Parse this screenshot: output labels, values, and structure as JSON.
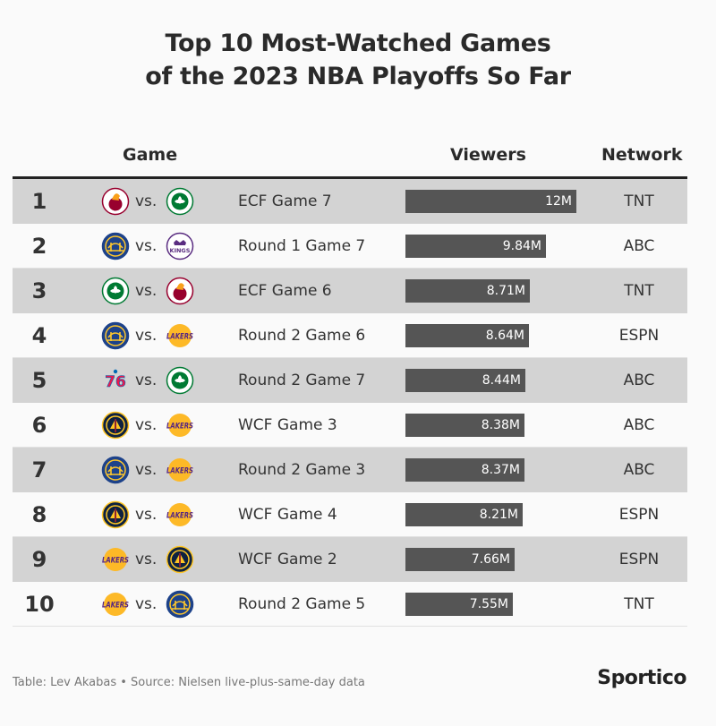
{
  "title_line1": "Top 10 Most-Watched Games",
  "title_line2": "of the 2023 NBA Playoffs So Far",
  "headers": {
    "game": "Game",
    "viewers": "Viewers",
    "network": "Network"
  },
  "vs_text": "vs.",
  "footer": "Table: Lev Akabas • Source: Nielsen live-plus-same-day data",
  "brand": "Sportico",
  "colors": {
    "bar": "#555555",
    "shade": "#d3d3d3",
    "text": "#222222"
  },
  "team_logos": {
    "heat": {
      "icon": "heat-logo-icon",
      "text": "",
      "bg": "#ffffff",
      "fg": "#98002e",
      "ring": "#98002e",
      "style": "flame"
    },
    "celtics": {
      "icon": "celtics-logo-icon",
      "text": "",
      "bg": "#ffffff",
      "fg": "#007a33",
      "ring": "#007a33",
      "style": "clover"
    },
    "warriors": {
      "icon": "warriors-logo-icon",
      "text": "",
      "bg": "#1d428a",
      "fg": "#ffc72c",
      "ring": "#1d428a",
      "style": "bridge"
    },
    "kings": {
      "icon": "kings-logo-icon",
      "text": "KINGS",
      "bg": "#ffffff",
      "fg": "#5a2d81",
      "ring": "#5a2d81",
      "style": "crown"
    },
    "lakers": {
      "icon": "lakers-logo-icon",
      "text": "LAKERS",
      "bg": "none",
      "fg": "#552583",
      "ring": "#fdb927",
      "style": "wordmark"
    },
    "sixers": {
      "icon": "76ers-logo-icon",
      "text": "76",
      "bg": "none",
      "fg": "#ed174c",
      "ring": "#006bb6",
      "style": "numeral"
    },
    "nuggets": {
      "icon": "nuggets-logo-icon",
      "text": "",
      "bg": "#0e2240",
      "fg": "#fec524",
      "ring": "#fec524",
      "style": "pick"
    }
  },
  "chart_data": {
    "type": "table",
    "title": "Top 10 Most-Watched Games of the 2023 NBA Playoffs So Far",
    "columns": [
      "Game",
      "Viewers",
      "Network"
    ],
    "xlim": [
      0,
      12
    ],
    "rows": [
      {
        "rank": "1",
        "team_a": "heat",
        "team_b": "celtics",
        "game": "ECF Game 7",
        "viewers": 12.0,
        "viewers_label": "12M",
        "network": "TNT"
      },
      {
        "rank": "2",
        "team_a": "warriors",
        "team_b": "kings",
        "game": "Round 1 Game 7",
        "viewers": 9.84,
        "viewers_label": "9.84M",
        "network": "ABC"
      },
      {
        "rank": "3",
        "team_a": "celtics",
        "team_b": "heat",
        "game": "ECF Game 6",
        "viewers": 8.71,
        "viewers_label": "8.71M",
        "network": "TNT"
      },
      {
        "rank": "4",
        "team_a": "warriors",
        "team_b": "lakers",
        "game": "Round 2 Game 6",
        "viewers": 8.64,
        "viewers_label": "8.64M",
        "network": "ESPN"
      },
      {
        "rank": "5",
        "team_a": "sixers",
        "team_b": "celtics",
        "game": "Round 2 Game 7",
        "viewers": 8.44,
        "viewers_label": "8.44M",
        "network": "ABC"
      },
      {
        "rank": "6",
        "team_a": "nuggets",
        "team_b": "lakers",
        "game": "WCF Game 3",
        "viewers": 8.38,
        "viewers_label": "8.38M",
        "network": "ABC"
      },
      {
        "rank": "7",
        "team_a": "warriors",
        "team_b": "lakers",
        "game": "Round 2 Game 3",
        "viewers": 8.37,
        "viewers_label": "8.37M",
        "network": "ABC"
      },
      {
        "rank": "8",
        "team_a": "nuggets",
        "team_b": "lakers",
        "game": "WCF Game 4",
        "viewers": 8.21,
        "viewers_label": "8.21M",
        "network": "ESPN"
      },
      {
        "rank": "9",
        "team_a": "lakers",
        "team_b": "nuggets",
        "game": "WCF Game 2",
        "viewers": 7.66,
        "viewers_label": "7.66M",
        "network": "ESPN"
      },
      {
        "rank": "10",
        "team_a": "lakers",
        "team_b": "warriors",
        "game": "Round 2 Game 5",
        "viewers": 7.55,
        "viewers_label": "7.55M",
        "network": "TNT"
      }
    ]
  }
}
